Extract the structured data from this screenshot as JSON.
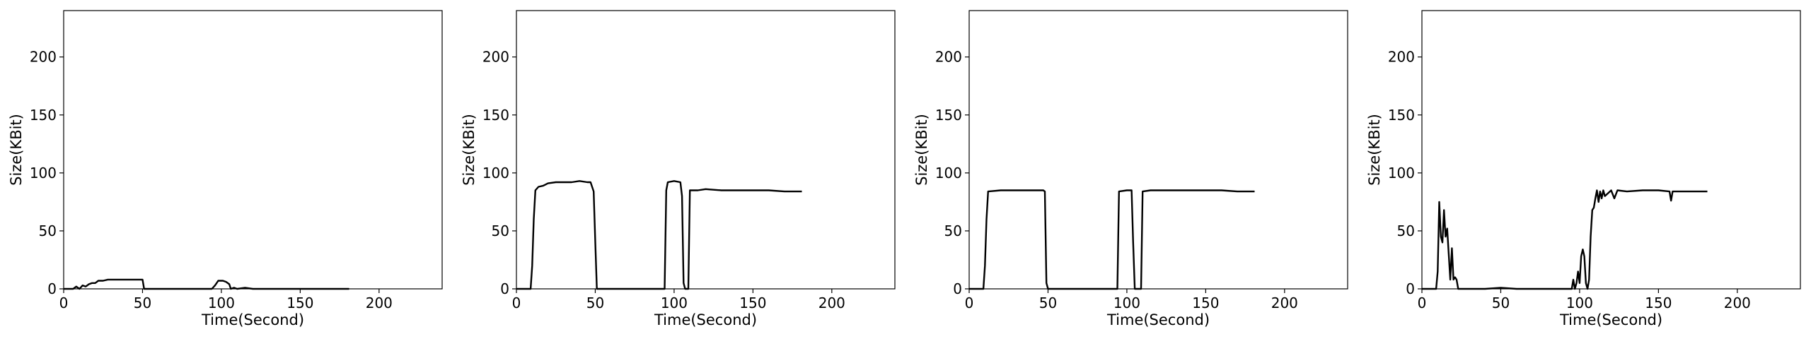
{
  "chart_data": [
    {
      "type": "line",
      "xlabel": "Time(Second)",
      "ylabel": "Size(KBit)",
      "xlim": [
        0,
        240
      ],
      "ylim": [
        0,
        240
      ],
      "xticks": [
        "0",
        "50",
        "100",
        "150",
        "200"
      ],
      "yticks": [
        "0",
        "50",
        "100",
        "150",
        "200"
      ],
      "series": [
        {
          "points": [
            [
              0,
              0
            ],
            [
              6,
              0
            ],
            [
              8,
              2
            ],
            [
              10,
              0
            ],
            [
              12,
              3
            ],
            [
              14,
              2
            ],
            [
              16,
              4
            ],
            [
              18,
              5
            ],
            [
              20,
              5
            ],
            [
              22,
              7
            ],
            [
              25,
              7
            ],
            [
              28,
              8
            ],
            [
              32,
              8
            ],
            [
              36,
              8
            ],
            [
              40,
              8
            ],
            [
              45,
              8
            ],
            [
              50,
              8
            ],
            [
              51,
              0
            ],
            [
              60,
              0
            ],
            [
              70,
              0
            ],
            [
              80,
              0
            ],
            [
              90,
              0
            ],
            [
              94,
              0
            ],
            [
              96,
              3
            ],
            [
              98,
              7
            ],
            [
              101,
              7
            ],
            [
              103,
              6
            ],
            [
              105,
              4
            ],
            [
              106,
              0
            ],
            [
              108,
              1
            ],
            [
              110,
              0
            ],
            [
              115,
              1
            ],
            [
              120,
              0
            ],
            [
              130,
              0
            ],
            [
              140,
              0
            ],
            [
              150,
              0
            ],
            [
              160,
              0
            ],
            [
              170,
              0
            ],
            [
              181,
              0
            ]
          ]
        }
      ]
    },
    {
      "type": "line",
      "xlabel": "Time(Second)",
      "ylabel": "Size(KBit)",
      "xlim": [
        0,
        240
      ],
      "ylim": [
        0,
        240
      ],
      "xticks": [
        "0",
        "50",
        "100",
        "150",
        "200"
      ],
      "yticks": [
        "0",
        "50",
        "100",
        "150",
        "200"
      ],
      "series": [
        {
          "points": [
            [
              0,
              0
            ],
            [
              9,
              0
            ],
            [
              10,
              20
            ],
            [
              11,
              60
            ],
            [
              12,
              85
            ],
            [
              14,
              88
            ],
            [
              17,
              89
            ],
            [
              20,
              91
            ],
            [
              25,
              92
            ],
            [
              30,
              92
            ],
            [
              35,
              92
            ],
            [
              40,
              93
            ],
            [
              45,
              92
            ],
            [
              47,
              92
            ],
            [
              48,
              88
            ],
            [
              49,
              84
            ],
            [
              50,
              40
            ],
            [
              51,
              0
            ],
            [
              60,
              0
            ],
            [
              70,
              0
            ],
            [
              80,
              0
            ],
            [
              90,
              0
            ],
            [
              94,
              0
            ],
            [
              95,
              85
            ],
            [
              96,
              92
            ],
            [
              100,
              93
            ],
            [
              104,
              92
            ],
            [
              105,
              80
            ],
            [
              106,
              5
            ],
            [
              107,
              0
            ],
            [
              109,
              0
            ],
            [
              110,
              85
            ],
            [
              115,
              85
            ],
            [
              120,
              86
            ],
            [
              130,
              85
            ],
            [
              140,
              85
            ],
            [
              150,
              85
            ],
            [
              160,
              85
            ],
            [
              170,
              84
            ],
            [
              181,
              84
            ]
          ]
        }
      ]
    },
    {
      "type": "line",
      "xlabel": "Time(Second)",
      "ylabel": "Size(KBit)",
      "xlim": [
        0,
        240
      ],
      "ylim": [
        0,
        240
      ],
      "xticks": [
        "0",
        "50",
        "100",
        "150",
        "200"
      ],
      "yticks": [
        "0",
        "50",
        "100",
        "150",
        "200"
      ],
      "series": [
        {
          "points": [
            [
              0,
              0
            ],
            [
              9,
              0
            ],
            [
              10,
              20
            ],
            [
              11,
              60
            ],
            [
              12,
              84
            ],
            [
              20,
              85
            ],
            [
              30,
              85
            ],
            [
              40,
              85
            ],
            [
              47,
              85
            ],
            [
              48,
              84
            ],
            [
              49,
              5
            ],
            [
              50,
              0
            ],
            [
              60,
              0
            ],
            [
              70,
              0
            ],
            [
              80,
              0
            ],
            [
              90,
              0
            ],
            [
              94,
              0
            ],
            [
              95,
              84
            ],
            [
              100,
              85
            ],
            [
              103,
              85
            ],
            [
              104,
              40
            ],
            [
              105,
              0
            ],
            [
              109,
              0
            ],
            [
              110,
              84
            ],
            [
              115,
              85
            ],
            [
              120,
              85
            ],
            [
              130,
              85
            ],
            [
              140,
              85
            ],
            [
              150,
              85
            ],
            [
              160,
              85
            ],
            [
              170,
              84
            ],
            [
              181,
              84
            ]
          ]
        }
      ]
    },
    {
      "type": "line",
      "xlabel": "Time(Second)",
      "ylabel": "Size(KBit)",
      "xlim": [
        0,
        240
      ],
      "ylim": [
        0,
        240
      ],
      "xticks": [
        "0",
        "50",
        "100",
        "150",
        "200"
      ],
      "yticks": [
        "0",
        "50",
        "100",
        "150",
        "200"
      ],
      "series": [
        {
          "points": [
            [
              0,
              0
            ],
            [
              9,
              0
            ],
            [
              10,
              15
            ],
            [
              11,
              75
            ],
            [
              12,
              45
            ],
            [
              13,
              40
            ],
            [
              14,
              68
            ],
            [
              15,
              45
            ],
            [
              16,
              52
            ],
            [
              17,
              30
            ],
            [
              18,
              8
            ],
            [
              19,
              35
            ],
            [
              20,
              8
            ],
            [
              21,
              10
            ],
            [
              22,
              8
            ],
            [
              23,
              0
            ],
            [
              30,
              0
            ],
            [
              40,
              0
            ],
            [
              50,
              1
            ],
            [
              60,
              0
            ],
            [
              70,
              0
            ],
            [
              80,
              0
            ],
            [
              90,
              0
            ],
            [
              95,
              0
            ],
            [
              96,
              8
            ],
            [
              97,
              0
            ],
            [
              98,
              5
            ],
            [
              99,
              15
            ],
            [
              100,
              5
            ],
            [
              101,
              28
            ],
            [
              102,
              34
            ],
            [
              103,
              28
            ],
            [
              104,
              5
            ],
            [
              105,
              0
            ],
            [
              106,
              8
            ],
            [
              107,
              45
            ],
            [
              108,
              68
            ],
            [
              109,
              70
            ],
            [
              110,
              78
            ],
            [
              111,
              85
            ],
            [
              112,
              75
            ],
            [
              113,
              84
            ],
            [
              114,
              78
            ],
            [
              115,
              85
            ],
            [
              116,
              80
            ],
            [
              120,
              85
            ],
            [
              122,
              78
            ],
            [
              124,
              85
            ],
            [
              130,
              84
            ],
            [
              140,
              85
            ],
            [
              150,
              85
            ],
            [
              157,
              84
            ],
            [
              158,
              76
            ],
            [
              159,
              84
            ],
            [
              170,
              84
            ],
            [
              181,
              84
            ]
          ]
        }
      ]
    }
  ]
}
